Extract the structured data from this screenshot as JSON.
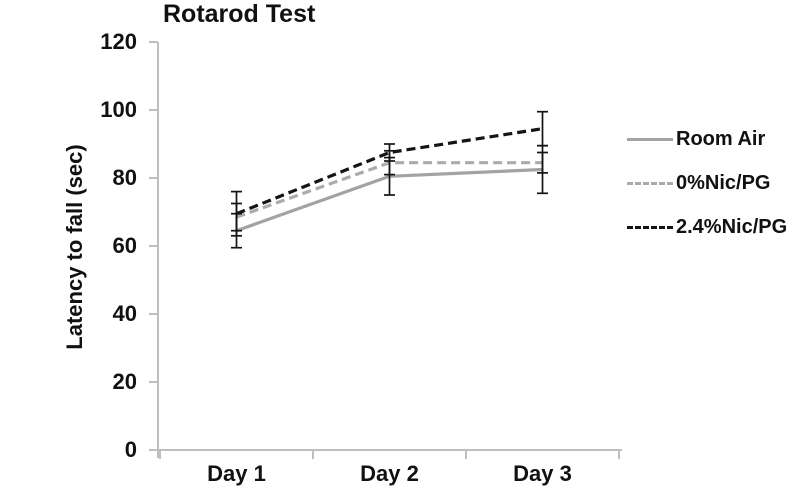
{
  "chart_data": {
    "type": "line",
    "title": "Rotarod Test",
    "xlabel": "",
    "ylabel": "Latency to fall (sec)",
    "categories": [
      "Day 1",
      "Day 2",
      "Day 3"
    ],
    "yticks": [
      0,
      20,
      40,
      60,
      80,
      100,
      120
    ],
    "ylim": [
      0,
      120
    ],
    "grid": false,
    "legend_position": "right",
    "axis_color": "#bfbfbf",
    "error_bar_color": "#141414",
    "series": [
      {
        "name": "Room Air",
        "color": "#a3a3a3",
        "line_style": "solid",
        "values": [
          64.5,
          80.5,
          82.5
        ],
        "errors": [
          5,
          5.5,
          7
        ]
      },
      {
        "name": "0%Nic/PG",
        "color": "#ababab",
        "line_style": "dashed",
        "values": [
          68.5,
          84.5,
          84.5
        ],
        "errors": [
          4,
          3.5,
          3
        ]
      },
      {
        "name": "2.4%Nic/PG",
        "color": "#141414",
        "line_style": "dashed",
        "values": [
          69.5,
          87.5,
          94.5
        ],
        "errors": [
          6.5,
          2.5,
          5
        ]
      }
    ]
  }
}
